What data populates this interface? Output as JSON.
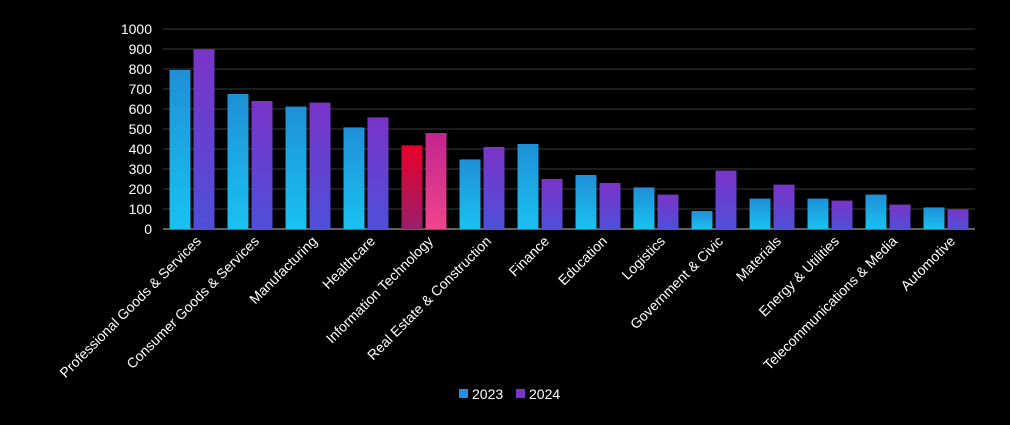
{
  "chart_data": {
    "type": "bar",
    "categories": [
      "Professional Goods & Services",
      "Consumer Goods & Services",
      "Manufacturing",
      "Healthcare",
      "Information Technology",
      "Real Estate & Construction",
      "Finance",
      "Education",
      "Logistics",
      "Government & Civic",
      "Materials",
      "Energy & Utilities",
      "Telecommunications & Media",
      "Automotive"
    ],
    "series": [
      {
        "name": "2023",
        "values": [
          795,
          675,
          612,
          508,
          418,
          348,
          425,
          270,
          208,
          90,
          152,
          152,
          172,
          108
        ]
      },
      {
        "name": "2024",
        "values": [
          898,
          640,
          632,
          558,
          480,
          410,
          250,
          230,
          172,
          292,
          222,
          142,
          122,
          98
        ]
      }
    ],
    "title": "",
    "xlabel": "",
    "ylabel": "",
    "ylim": [
      0,
      1000
    ],
    "yticks": [
      "0",
      "100",
      "200",
      "300",
      "400",
      "500",
      "600",
      "700",
      "800",
      "900",
      "1000"
    ],
    "grid": true,
    "legend_position": "bottom",
    "highlight_category": "Information Technology",
    "colors": {
      "series_2023_top": "#1f8fd8",
      "series_2023_bottom": "#19c2f0",
      "series_2024_top": "#7a34c8",
      "series_2024_bottom": "#4f4fd8",
      "highlight_2023_top": "#e8002a",
      "highlight_2023_bottom": "#9a1f6a",
      "highlight_2024_top": "#c2258e",
      "highlight_2024_bottom": "#f0458e",
      "legend_2023": "#1e90e8",
      "legend_2024": "#7a34c8",
      "background": "#000000",
      "text": "#ffffff",
      "grid": "#3a3a3a"
    }
  }
}
